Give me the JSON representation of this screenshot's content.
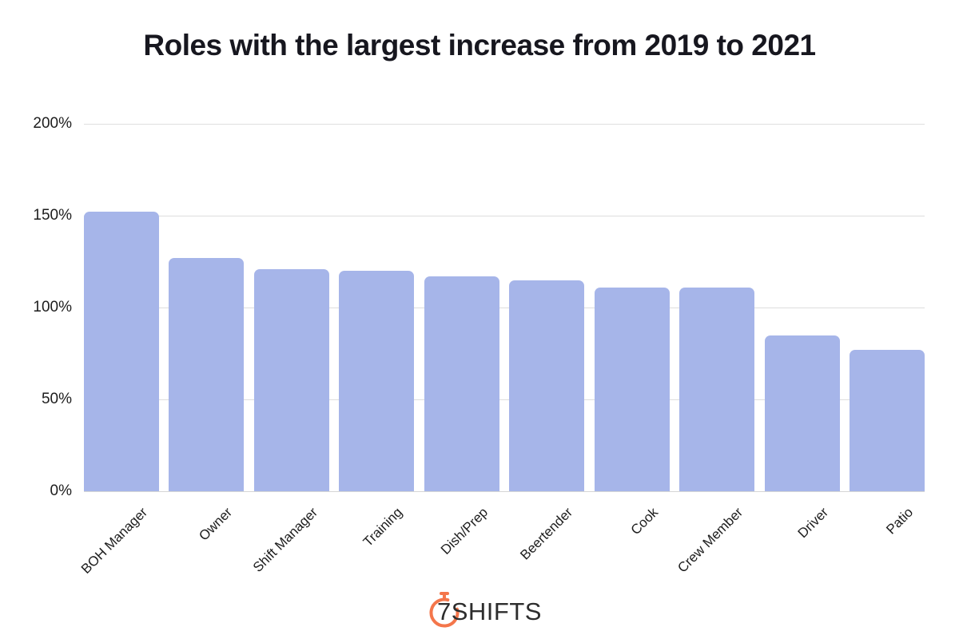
{
  "title": "Roles with the largest increase from 2019 to 2021",
  "chart_data": {
    "type": "bar",
    "title": "Roles with the largest increase from 2019 to 2021",
    "categories": [
      "BOH Manager",
      "Owner",
      "Shift Manager",
      "Training",
      "Dish/Prep",
      "Beertender",
      "Cook",
      "Crew Member",
      "Driver",
      "Patio"
    ],
    "values": [
      152,
      127,
      121,
      120,
      117,
      115,
      111,
      111,
      85,
      77
    ],
    "unit": "%",
    "xlabel": "",
    "ylabel": "",
    "ylim": [
      0,
      200
    ],
    "yticks": [
      0,
      50,
      100,
      150,
      200
    ],
    "ytick_labels": [
      "0%",
      "50%",
      "100%",
      "150%",
      "200%"
    ],
    "grid": true,
    "legend": "none",
    "xlabel_rotation_deg": 45
  },
  "colors": {
    "bar": "#a6b5e9",
    "grid": "#dedede",
    "axis_line": "#d6d6d6",
    "axis_text": "#1d1d1d",
    "title_text": "#17171f",
    "logo_orange": "#f4764b",
    "logo_text": "#2d2d2d"
  },
  "footer": {
    "brand": "7SHIFTS",
    "logo_icon": "stopwatch-icon"
  }
}
